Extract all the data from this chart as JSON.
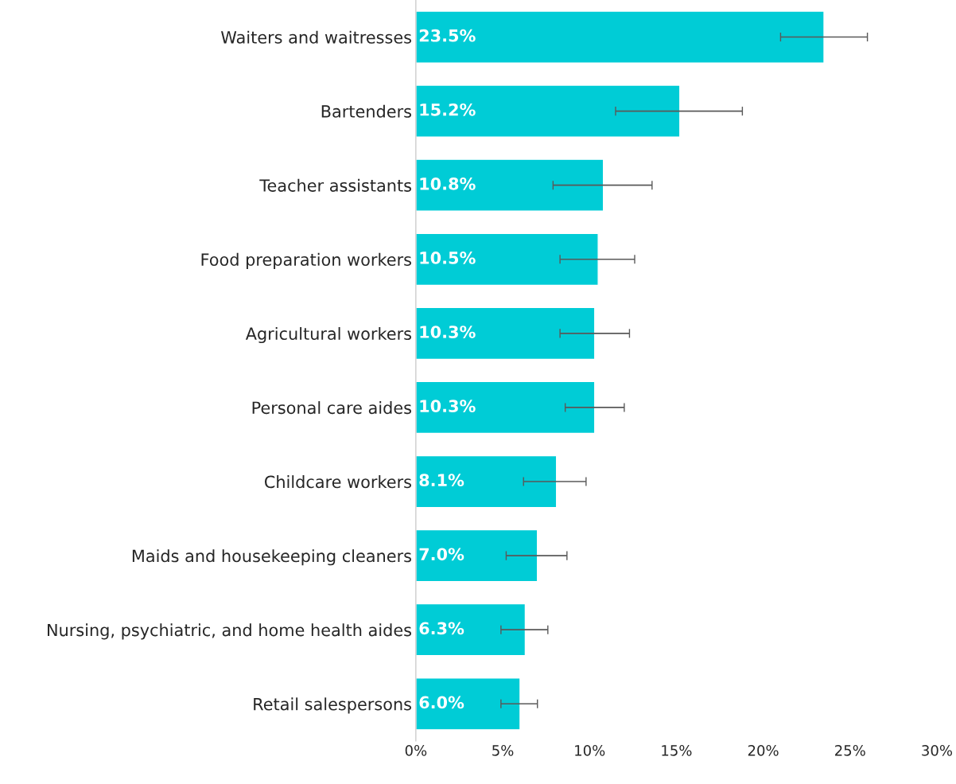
{
  "chart_data": {
    "type": "bar",
    "orientation": "horizontal",
    "categories": [
      "Waiters and waitresses",
      "Bartenders",
      "Teacher assistants",
      "Food preparation workers",
      "Agricultural workers",
      "Personal care aides",
      "Childcare workers",
      "Maids and housekeeping cleaners",
      "Nursing, psychiatric, and home health aides",
      "Retail salespersons"
    ],
    "values": [
      23.5,
      15.2,
      10.8,
      10.5,
      10.3,
      10.3,
      8.1,
      7.0,
      6.3,
      6.0
    ],
    "value_labels": [
      "23.5%",
      "15.2%",
      "10.8%",
      "10.5%",
      "10.3%",
      "10.3%",
      "8.1%",
      "7.0%",
      "6.3%",
      "6.0%"
    ],
    "errors": [
      [
        21.0,
        26.0
      ],
      [
        11.5,
        18.8
      ],
      [
        7.9,
        13.6
      ],
      [
        8.3,
        12.6
      ],
      [
        8.3,
        12.3
      ],
      [
        8.6,
        12.0
      ],
      [
        6.2,
        9.8
      ],
      [
        5.2,
        8.7
      ],
      [
        4.9,
        7.6
      ],
      [
        4.9,
        7.0
      ]
    ],
    "color": "#00ccd6",
    "xlim": [
      0,
      30
    ],
    "xticks": [
      {
        "value": 0,
        "label": "0%"
      },
      {
        "value": 5,
        "label": "5%"
      },
      {
        "value": 10,
        "label": "10%"
      },
      {
        "value": 15,
        "label": "15%"
      },
      {
        "value": 20,
        "label": "20%"
      },
      {
        "value": 25,
        "label": "25%"
      },
      {
        "value": 30,
        "label": "30%"
      }
    ],
    "grid": false,
    "legend": false
  }
}
